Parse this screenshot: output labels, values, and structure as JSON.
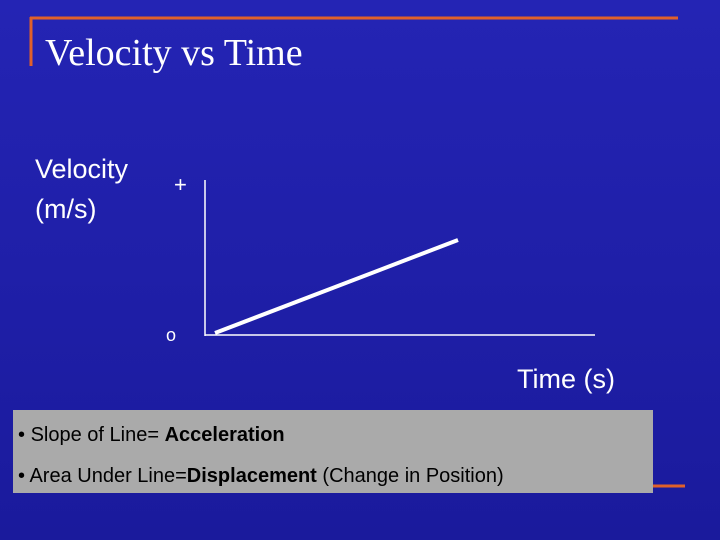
{
  "title": "Velocity vs Time",
  "graph": {
    "y_label": [
      "Velocity",
      "(m/s)"
    ],
    "y_top_marker": "+",
    "origin_marker": "o",
    "x_label": "Time (s)"
  },
  "notes": [
    {
      "bullet": "•",
      "text": "Slope of Line=",
      "term": "Acceleration"
    },
    {
      "bullet": "•",
      "text": "Area Under Line=",
      "term": "Displacement",
      "detail": "(Change in Position)"
    }
  ]
}
